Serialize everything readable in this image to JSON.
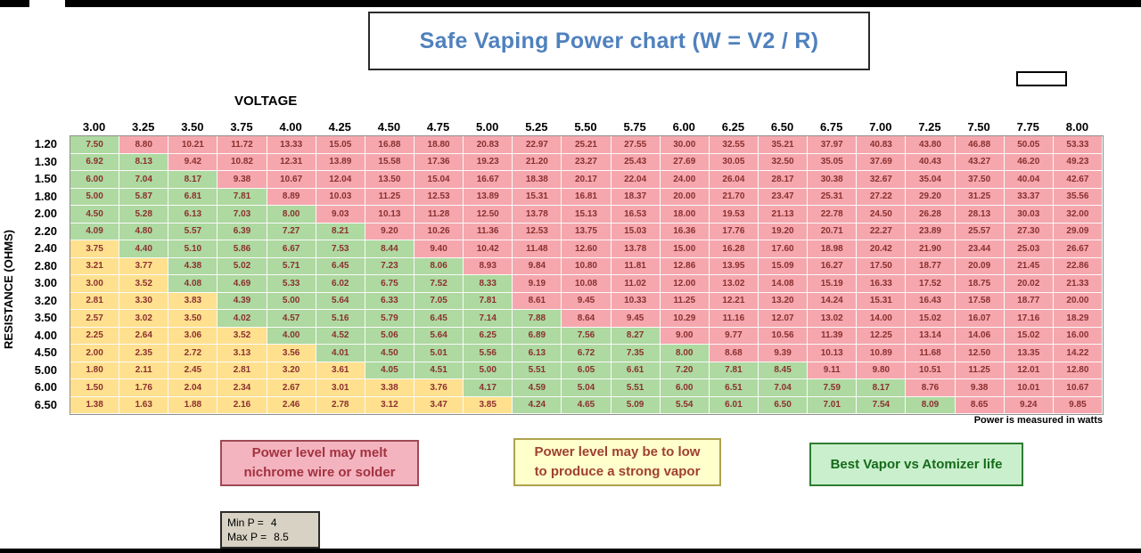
{
  "title": "Safe Vaping Power chart (W = V2 / R)",
  "labels": {
    "voltage": "VOLTAGE",
    "resistance": "RESISTANCE (OHMS)",
    "footnote": "Power is measured in watts"
  },
  "legend": {
    "high": {
      "lines": [
        "Power level may melt",
        "nichrome wire or solder"
      ],
      "fill": "#f3b4c0",
      "text_color": "#a3323f"
    },
    "low": {
      "lines": [
        "Power level may be to low",
        "to produce a strong vapor"
      ],
      "fill": "#ffffcb",
      "text_color": "#a04030"
    },
    "good": {
      "label": "Best Vapor vs Atomizer life",
      "fill": "#caefcc",
      "text_color": "#156b1a"
    }
  },
  "limits": {
    "min_label": "Min P =",
    "min_value": "4",
    "max_label": "Max P =",
    "max_value": "8.5"
  },
  "accent_colors": {
    "title_blue": "#4f81bd",
    "cell_low": "#ffe08e",
    "cell_good": "#aed9a0",
    "cell_high": "#f5a7ad",
    "cell_text": "#8b3030"
  },
  "chart_data": {
    "type": "heatmap",
    "title": "Safe Vaping Power chart (W = V2 / R)",
    "xlabel": "VOLTAGE",
    "ylabel": "RESISTANCE (OHMS)",
    "unit": "watts",
    "voltages": [
      3.0,
      3.25,
      3.5,
      3.75,
      4.0,
      4.25,
      4.5,
      4.75,
      5.0,
      5.25,
      5.5,
      5.75,
      6.0,
      6.25,
      6.5,
      6.75,
      7.0,
      7.25,
      7.5,
      7.75,
      8.0
    ],
    "resistances": [
      1.2,
      1.3,
      1.5,
      1.8,
      2.0,
      2.2,
      2.4,
      2.8,
      3.0,
      3.2,
      3.5,
      4.0,
      4.5,
      5.0,
      6.0,
      6.5
    ],
    "values": [
      [
        7.5,
        8.8,
        10.21,
        11.72,
        13.33,
        15.05,
        16.88,
        18.8,
        20.83,
        22.97,
        25.21,
        27.55,
        30.0,
        32.55,
        35.21,
        37.97,
        40.83,
        43.8,
        46.88,
        50.05,
        53.33
      ],
      [
        6.92,
        8.13,
        9.42,
        10.82,
        12.31,
        13.89,
        15.58,
        17.36,
        19.23,
        21.2,
        23.27,
        25.43,
        27.69,
        30.05,
        32.5,
        35.05,
        37.69,
        40.43,
        43.27,
        46.2,
        49.23
      ],
      [
        6.0,
        7.04,
        8.17,
        9.38,
        10.67,
        12.04,
        13.5,
        15.04,
        16.67,
        18.38,
        20.17,
        22.04,
        24.0,
        26.04,
        28.17,
        30.38,
        32.67,
        35.04,
        37.5,
        40.04,
        42.67
      ],
      [
        5.0,
        5.87,
        6.81,
        7.81,
        8.89,
        10.03,
        11.25,
        12.53,
        13.89,
        15.31,
        16.81,
        18.37,
        20.0,
        21.7,
        23.47,
        25.31,
        27.22,
        29.2,
        31.25,
        33.37,
        35.56
      ],
      [
        4.5,
        5.28,
        6.13,
        7.03,
        8.0,
        9.03,
        10.13,
        11.28,
        12.5,
        13.78,
        15.13,
        16.53,
        18.0,
        19.53,
        21.13,
        22.78,
        24.5,
        26.28,
        28.13,
        30.03,
        32.0
      ],
      [
        4.09,
        4.8,
        5.57,
        6.39,
        7.27,
        8.21,
        9.2,
        10.26,
        11.36,
        12.53,
        13.75,
        15.03,
        16.36,
        17.76,
        19.2,
        20.71,
        22.27,
        23.89,
        25.57,
        27.3,
        29.09
      ],
      [
        3.75,
        4.4,
        5.1,
        5.86,
        6.67,
        7.53,
        8.44,
        9.4,
        10.42,
        11.48,
        12.6,
        13.78,
        15.0,
        16.28,
        17.6,
        18.98,
        20.42,
        21.9,
        23.44,
        25.03,
        26.67
      ],
      [
        3.21,
        3.77,
        4.38,
        5.02,
        5.71,
        6.45,
        7.23,
        8.06,
        8.93,
        9.84,
        10.8,
        11.81,
        12.86,
        13.95,
        15.09,
        16.27,
        17.5,
        18.77,
        20.09,
        21.45,
        22.86
      ],
      [
        3.0,
        3.52,
        4.08,
        4.69,
        5.33,
        6.02,
        6.75,
        7.52,
        8.33,
        9.19,
        10.08,
        11.02,
        12.0,
        13.02,
        14.08,
        15.19,
        16.33,
        17.52,
        18.75,
        20.02,
        21.33
      ],
      [
        2.81,
        3.3,
        3.83,
        4.39,
        5.0,
        5.64,
        6.33,
        7.05,
        7.81,
        8.61,
        9.45,
        10.33,
        11.25,
        12.21,
        13.2,
        14.24,
        15.31,
        16.43,
        17.58,
        18.77,
        20.0
      ],
      [
        2.57,
        3.02,
        3.5,
        4.02,
        4.57,
        5.16,
        5.79,
        6.45,
        7.14,
        7.88,
        8.64,
        9.45,
        10.29,
        11.16,
        12.07,
        13.02,
        14.0,
        15.02,
        16.07,
        17.16,
        18.29
      ],
      [
        2.25,
        2.64,
        3.06,
        3.52,
        4.0,
        4.52,
        5.06,
        5.64,
        6.25,
        6.89,
        7.56,
        8.27,
        9.0,
        9.77,
        10.56,
        11.39,
        12.25,
        13.14,
        14.06,
        15.02,
        16.0
      ],
      [
        2.0,
        2.35,
        2.72,
        3.13,
        3.56,
        4.01,
        4.5,
        5.01,
        5.56,
        6.13,
        6.72,
        7.35,
        8.0,
        8.68,
        9.39,
        10.13,
        10.89,
        11.68,
        12.5,
        13.35,
        14.22
      ],
      [
        1.8,
        2.11,
        2.45,
        2.81,
        3.2,
        3.61,
        4.05,
        4.51,
        5.0,
        5.51,
        6.05,
        6.61,
        7.2,
        7.81,
        8.45,
        9.11,
        9.8,
        10.51,
        11.25,
        12.01,
        12.8
      ],
      [
        1.5,
        1.76,
        2.04,
        2.34,
        2.67,
        3.01,
        3.38,
        3.76,
        4.17,
        4.59,
        5.04,
        5.51,
        6.0,
        6.51,
        7.04,
        7.59,
        8.17,
        8.76,
        9.38,
        10.01,
        10.67
      ],
      [
        1.38,
        1.63,
        1.88,
        2.16,
        2.46,
        2.78,
        3.12,
        3.47,
        3.85,
        4.24,
        4.65,
        5.09,
        5.54,
        6.01,
        6.5,
        7.01,
        7.54,
        8.09,
        8.65,
        9.24,
        9.85
      ]
    ],
    "thresholds": {
      "min_power": 4,
      "max_power": 8.5
    },
    "color_rules": {
      "low": "W < 4 (yellow: may be too low for strong vapor)",
      "good": "4 <= W <= 8.5 (green: best vapor vs atomizer life)",
      "high": "W > 8.5 (pink: may melt nichrome wire or solder)"
    },
    "colors": {
      "low": "#ffe08e",
      "good": "#aed9a0",
      "high": "#f5a7ad"
    },
    "legend_position": "below-table"
  }
}
